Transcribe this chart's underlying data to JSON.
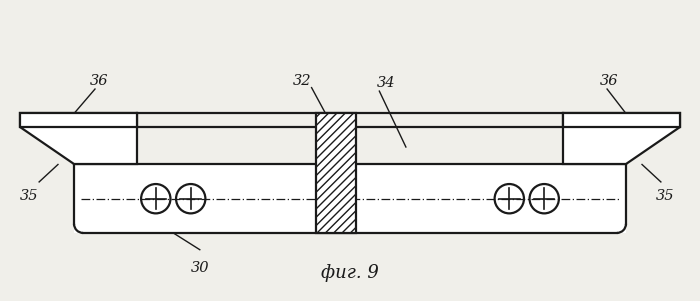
{
  "bg_color": "#f0efea",
  "line_color": "#1a1a1a",
  "fig_width": 7.0,
  "fig_height": 3.01,
  "dpi": 100,
  "caption": "фиг. 9"
}
